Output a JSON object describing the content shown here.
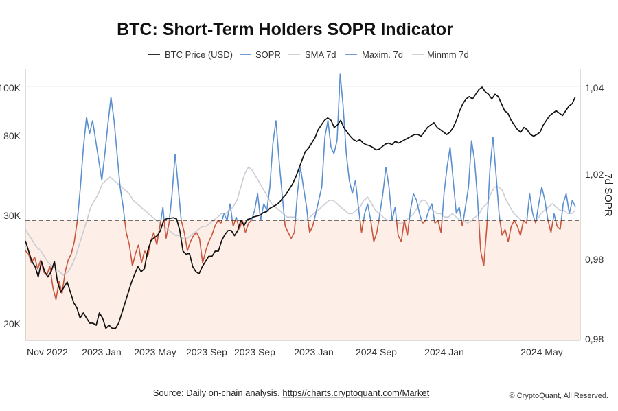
{
  "chart_data": {
    "type": "line",
    "title": "BTC: Short-Term Holders SOPR Indicator",
    "legend": [
      {
        "label": "BTC Price (USD)",
        "color": "#111111"
      },
      {
        "label": "SOPR",
        "color": "#5b8fd0"
      },
      {
        "label": "SMA 7d",
        "color": "#c9cdd3"
      },
      {
        "label": "Maxim. 7d",
        "color": "#5b8fd0"
      },
      {
        "label": "Minmm 7d",
        "color": "#c9cdd3"
      }
    ],
    "legend_position": "top-center",
    "x_tick_labels": [
      "Nov 2022",
      "2023 Jan",
      "2023 May",
      "2023 Sep",
      "2023 Sep",
      "2023 Jan",
      "2024 Sep",
      "2024 Jan",
      "2024 May"
    ],
    "left_axis": {
      "tick_labels": [
        "100K",
        "80K",
        "30K",
        "20K"
      ]
    },
    "right_axis": {
      "title": "7d SOPR",
      "tick_labels": [
        "1,04",
        "1,02",
        "0,98",
        "0,98"
      ]
    },
    "baseline_sopr": 1.0,
    "colors": {
      "sopr_above": "#5b8fd0",
      "sopr_below": "#c8553d",
      "shade_below": "#fdeee7",
      "price": "#111111",
      "sma": "#c9cdd3"
    },
    "series": [
      {
        "name": "BTC Price (USD)",
        "axis": "left",
        "values": [
          28,
          27,
          26,
          25.5,
          24.5,
          26,
          25,
          24.5,
          25,
          26,
          24,
          23,
          23.5,
          24,
          23,
          22,
          21.5,
          20.5,
          21,
          20.5,
          20,
          20,
          19.8,
          21,
          20.5,
          19.5,
          19.8,
          19.5,
          19.5,
          20,
          21,
          22,
          23,
          24,
          24.8,
          25.5,
          25,
          25.3,
          27,
          28,
          28.3,
          28.5,
          29,
          30,
          31,
          31.2,
          31.5,
          30.8,
          29,
          27,
          26.7,
          26.8,
          25.5,
          25,
          24.8,
          25.5,
          26,
          26.5,
          26.5,
          27,
          27,
          28,
          28.6,
          29,
          29,
          28.5,
          29,
          30,
          29.5,
          30.5,
          31,
          32,
          32.5,
          33,
          34.5,
          35,
          37,
          38,
          39,
          40.5,
          43,
          45,
          48,
          51,
          55,
          60,
          65,
          70,
          72,
          75,
          78,
          82,
          84,
          86,
          87,
          86,
          83,
          84,
          86,
          83,
          81,
          79,
          77,
          76,
          77,
          75,
          74,
          73.5,
          72.5,
          71,
          71.5,
          73,
          74.5,
          75,
          74,
          76,
          75,
          76,
          77,
          78,
          79,
          80,
          80,
          79,
          81,
          83,
          84,
          85,
          83,
          82,
          81,
          80,
          81,
          83,
          86,
          90,
          93,
          95,
          96,
          95,
          97,
          99,
          100,
          98,
          97,
          95,
          97,
          96,
          93,
          90,
          89,
          86,
          84,
          82,
          81,
          83,
          82,
          80,
          79,
          80,
          81,
          84,
          86,
          88,
          89,
          90,
          89,
          88,
          90,
          92,
          93,
          96
        ]
      },
      {
        "name": "SOPR",
        "axis": "right",
        "values": [
          0.99,
          0.989,
          0.986,
          0.988,
          0.984,
          0.987,
          0.983,
          0.982,
          0.985,
          0.978,
          0.974,
          0.98,
          0.976,
          0.983,
          0.987,
          0.989,
          0.993,
          1.0,
          1.01,
          1.022,
          1.031,
          1.026,
          1.03,
          1.024,
          1.018,
          1.012,
          1.02,
          1.029,
          1.037,
          1.03,
          1.02,
          1.01,
          1.004,
          0.996,
          0.992,
          0.985,
          0.989,
          0.992,
          0.986,
          0.99,
          0.988,
          0.993,
          0.996,
          0.992,
          0.998,
          1.004,
          0.994,
          0.999,
          1.008,
          1.02,
          1.01,
          1.0,
          0.996,
          0.99,
          0.993,
          0.995,
          0.996,
          0.994,
          0.986,
          0.99,
          0.993,
          0.995,
          0.998,
          1.0,
          0.999,
          1.002,
          1.0,
          1.005,
          0.998,
          1.001,
          0.997,
          1.0,
          0.996,
          0.999,
          1.0,
          1.003,
          1.008,
          1.0,
          1.005,
          1.003,
          1.01,
          1.023,
          1.03,
          1.018,
          1.008,
          0.998,
          0.996,
          0.994,
          0.996,
          1.008,
          1.016,
          1.01,
          1.004,
          0.996,
          0.998,
          1.002,
          1.006,
          1.01,
          1.025,
          1.03,
          1.022,
          1.02,
          1.024,
          1.044,
          1.034,
          1.02,
          1.012,
          1.008,
          1.012,
          1.004,
          0.996,
          1.002,
          1.005,
          1.0,
          0.993,
          0.996,
          1.002,
          1.008,
          1.016,
          1.01,
          1.0,
          1.004,
          0.995,
          0.993,
          1.0,
          0.995,
          1.003,
          1.008,
          1.006,
          1.002,
          0.999,
          1.0,
          1.003,
          1.005,
          0.999,
          1.0,
          0.996,
          1.008,
          1.016,
          1.022,
          1.012,
          1.002,
          1.004,
          0.998,
          1.004,
          1.01,
          1.024,
          1.018,
          1.006,
          0.99,
          0.985,
          0.998,
          1.015,
          1.025,
          1.014,
          1.002,
          0.995,
          0.997,
          0.993,
          0.998,
          1.0,
          0.998,
          0.995,
          1.0,
          0.999,
          1.008,
          1.002,
          0.999,
          1.005,
          1.01,
          1.006,
          1.0,
          0.996,
          1.002,
          0.998,
          0.997,
          1.005,
          1.008,
          1.002,
          1.006,
          1.004
        ]
      },
      {
        "name": "SMA 7d",
        "axis": "right",
        "values": [
          0.997,
          0.995,
          0.993,
          0.991,
          0.99,
          0.988,
          0.986,
          0.985,
          0.984,
          0.983,
          0.982,
          0.983,
          0.985,
          0.988,
          0.992,
          0.996,
          1.0,
          1.004,
          1.006,
          1.008,
          1.011,
          1.012,
          1.013,
          1.012,
          1.011,
          1.01,
          1.009,
          1.008,
          1.006,
          1.005,
          1.004,
          1.003,
          1.002,
          1.001,
          1.0,
          0.999,
          0.998,
          0.997,
          0.996,
          0.995,
          0.995,
          0.994,
          0.994,
          0.995,
          0.996,
          0.997,
          0.998,
          0.998,
          0.999,
          1.0,
          1.001,
          1.002,
          1.002,
          1.003,
          1.004,
          1.006,
          1.01,
          1.014,
          1.016,
          1.015,
          1.013,
          1.011,
          1.009,
          1.007,
          1.005,
          1.004,
          1.003,
          1.002,
          1.001,
          1.001,
          1.001,
          1.0,
          1.0,
          1.0,
          1.001,
          1.002,
          1.003,
          1.004,
          1.005,
          1.006,
          1.006,
          1.005,
          1.004,
          1.003,
          1.002,
          1.002,
          1.003,
          1.004,
          1.006,
          1.007,
          1.005,
          1.003,
          1.002,
          1.001,
          1.0,
          1.0,
          1.0,
          0.999,
          0.999,
          1.0,
          1.001,
          1.002,
          1.004,
          1.006,
          1.006,
          1.004,
          1.003,
          1.002,
          1.002,
          1.001,
          1.001,
          1.002,
          1.001,
          1.0,
          1.0,
          0.999,
          1.0,
          1.001,
          1.002,
          1.004,
          1.005,
          1.008,
          1.01,
          1.01,
          1.009,
          1.006,
          1.004,
          1.002,
          1.001,
          1.0,
          1.0,
          1.0,
          1.0,
          1.0,
          1.002,
          1.003,
          1.004,
          1.005,
          1.004,
          1.003,
          1.003,
          1.002,
          1.002,
          1.003
        ]
      }
    ]
  },
  "footer": {
    "source_prefix": "Source: Daily on-chain analysis. ",
    "source_link": "https//charts.cryptoquant.com/Market",
    "copyright": "© CryptoQuant, All Reserved."
  }
}
